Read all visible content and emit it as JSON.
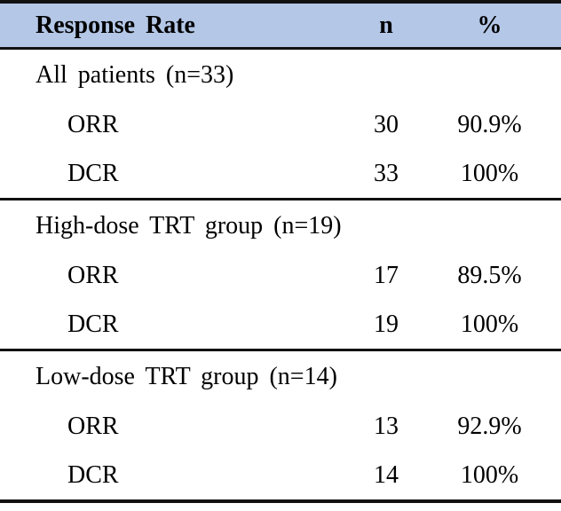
{
  "colors": {
    "header_bg": "#B4C7E7",
    "border": "#111111",
    "text": "#000000"
  },
  "table": {
    "columns": [
      "Response Rate",
      "n",
      "%"
    ],
    "sections": [
      {
        "title": "All patients (n=33)",
        "rows": [
          {
            "label": "ORR",
            "n": "30",
            "pct": "90.9%"
          },
          {
            "label": "DCR",
            "n": "33",
            "pct": "100%"
          }
        ]
      },
      {
        "title": "High-dose TRT group (n=19)",
        "rows": [
          {
            "label": "ORR",
            "n": "17",
            "pct": "89.5%"
          },
          {
            "label": "DCR",
            "n": "19",
            "pct": "100%"
          }
        ]
      },
      {
        "title": "Low-dose TRT group (n=14)",
        "rows": [
          {
            "label": "ORR",
            "n": "13",
            "pct": "92.9%"
          },
          {
            "label": "DCR",
            "n": "14",
            "pct": "100%"
          }
        ]
      }
    ]
  }
}
